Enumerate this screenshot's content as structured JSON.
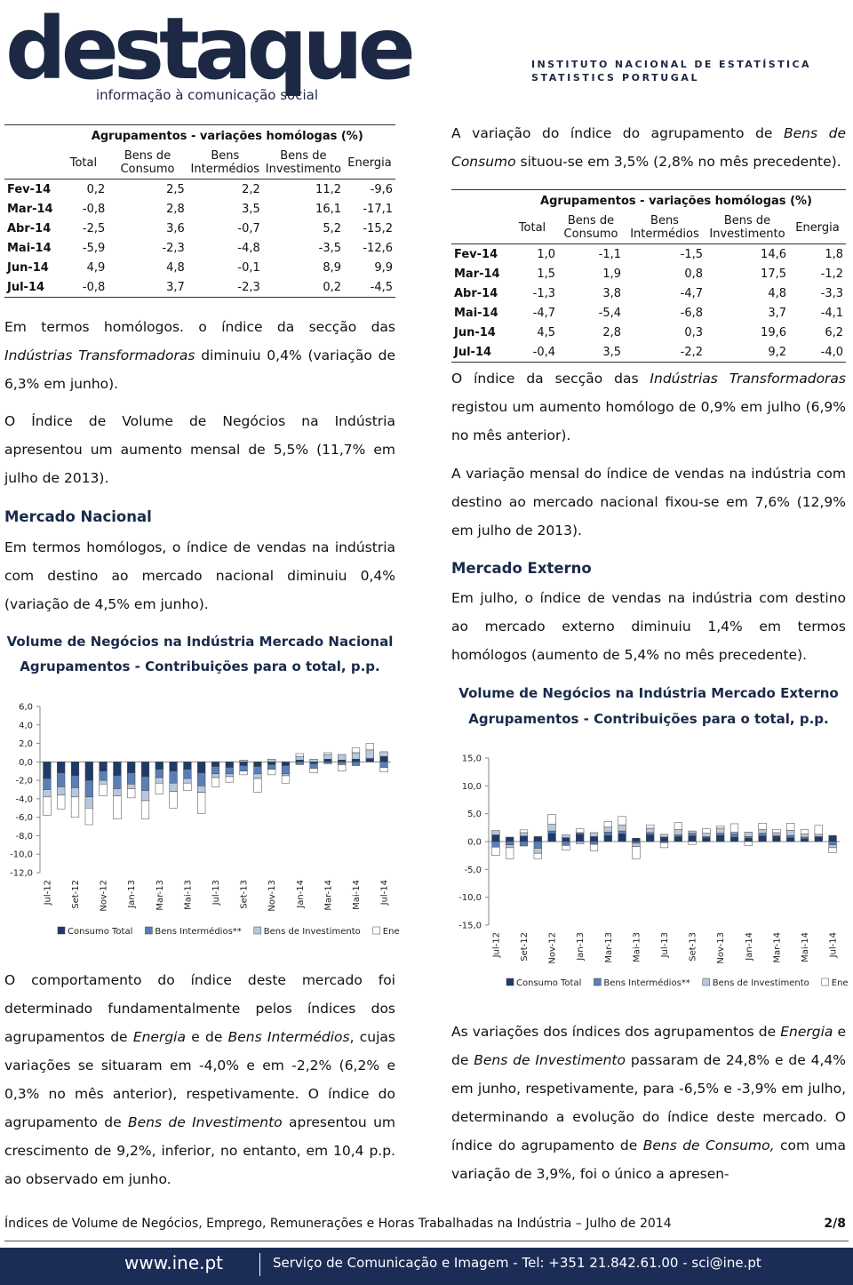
{
  "header": {
    "logo": "destaque",
    "tagline": "informação à comunicação social",
    "institute": "INSTITUTO NACIONAL DE ESTATÍSTICA",
    "institute_en": "STATISTICS PORTUGAL"
  },
  "tables": [
    {
      "title": "Agrupamentos - variações homólogas (%)",
      "columns": [
        "Total",
        "Bens de Consumo",
        "Bens Intermédios",
        "Bens de Investimento",
        "Energia"
      ],
      "rows": [
        [
          "Fev-14",
          "0,2",
          "2,5",
          "2,2",
          "11,2",
          "-9,6"
        ],
        [
          "Mar-14",
          "-0,8",
          "2,8",
          "3,5",
          "16,1",
          "-17,1"
        ],
        [
          "Abr-14",
          "-2,5",
          "3,6",
          "-0,7",
          "5,2",
          "-15,2"
        ],
        [
          "Mai-14",
          "-5,9",
          "-2,3",
          "-4,8",
          "-3,5",
          "-12,6"
        ],
        [
          "Jun-14",
          "4,9",
          "4,8",
          "-0,1",
          "8,9",
          "9,9"
        ],
        [
          "Jul-14",
          "-0,8",
          "3,7",
          "-2,3",
          "0,2",
          "-4,5"
        ]
      ]
    },
    {
      "title": "Agrupamentos - variações homólogas (%)",
      "columns": [
        "Total",
        "Bens de Consumo",
        "Bens Intermédios",
        "Bens de Investimento",
        "Energia"
      ],
      "rows": [
        [
          "Fev-14",
          "1,0",
          "-1,1",
          "-1,5",
          "14,6",
          "1,8"
        ],
        [
          "Mar-14",
          "1,5",
          "1,9",
          "0,8",
          "17,5",
          "-1,2"
        ],
        [
          "Abr-14",
          "-1,3",
          "3,8",
          "-4,7",
          "4,8",
          "-3,3"
        ],
        [
          "Mai-14",
          "-4,7",
          "-5,4",
          "-6,8",
          "3,7",
          "-4,1"
        ],
        [
          "Jun-14",
          "4,5",
          "2,8",
          "0,3",
          "19,6",
          "6,2"
        ],
        [
          "Jul-14",
          "-0,4",
          "3,5",
          "-2,2",
          "9,2",
          "-4,0"
        ]
      ]
    }
  ],
  "headings": [
    "Mercado Nacional",
    "Mercado Externo"
  ],
  "paragraphs": [
    [
      "Em termos homólogos. o índice da secção das ",
      "Indústrias Transformadoras",
      " diminuiu 0,4% (variação de 6,3% em junho)."
    ],
    [
      "O Índice de Volume de Negócios na Indústria apresentou um aumento mensal de 5,5% (11,7% em julho de 2013)."
    ],
    [
      "Em termos homólogos, o índice de vendas na indústria com destino ao mercado nacional diminuiu 0,4% (variação de 4,5% em junho)."
    ],
    [
      "O comportamento do índice deste mercado foi determinado fundamentalmente pelos índices dos agrupamentos de ",
      "Energia",
      " e de ",
      "Bens Intermédios",
      ", cujas variações se situaram em -4,0% e em -2,2% (6,2% e 0,3% no mês anterior), respetivamente. O índice do agrupamento de ",
      "Bens de Investimento",
      " apresentou um crescimento de 9,2%, inferior, no entanto, em 10,4 p.p. ao observado em junho."
    ],
    [
      "A variação do índice do agrupamento de ",
      "Bens de Consumo",
      " situou-se em 3,5% (2,8% no mês precedente)."
    ],
    [
      "O índice da secção das ",
      "Indústrias Transformadoras",
      " registou um aumento homólogo de 0,9% em julho (6,9% no mês anterior)."
    ],
    [
      "A variação mensal do índice de vendas na indústria com destino ao mercado nacional fixou-se em 7,6% (12,9% em julho de 2013)."
    ],
    [
      "Em julho, o índice de vendas na indústria com destino ao mercado externo diminuiu 1,4% em termos homólogos (aumento de 5,4% no mês precedente)."
    ],
    [
      "As variações dos índices dos agrupamentos de ",
      "Energia",
      " e de ",
      "Bens de Investimento",
      " passaram de 24,8% e de 4,4% em junho, respetivamente, para -6,5% e -3,9% em julho, determinando a evolução do índice deste mercado. O índice do agrupamento de ",
      "Bens de Consumo,",
      " com uma variação de 3,9%, foi o único a apresen-"
    ]
  ],
  "chart_data": [
    {
      "type": "bar",
      "stacked": true,
      "title": "Volume de Negócios na Indústria Mercado Nacional",
      "subtitle": "Agrupamentos - Contribuições para o total, p.p.",
      "categories": [
        "Jul-12",
        null,
        "Set-12",
        null,
        "Nov-12",
        null,
        "Jan-13",
        null,
        "Mar-13",
        null,
        "Mai-13",
        null,
        "Jul-13",
        null,
        "Set-13",
        null,
        "Nov-13",
        null,
        "Jan-14",
        null,
        "Mar-14",
        null,
        "Mai-14",
        null,
        "Jul-14"
      ],
      "ylim": [
        -12,
        6
      ],
      "yticks": [
        {
          "value": -12,
          "label": "-12,0"
        },
        {
          "value": -10,
          "label": "-10,0"
        },
        {
          "value": -8,
          "label": "-8,0"
        },
        {
          "value": -6,
          "label": "-6,0"
        },
        {
          "value": -4,
          "label": "-4,0"
        },
        {
          "value": -2,
          "label": "-2,0"
        },
        {
          "value": 0,
          "label": "0,0"
        },
        {
          "value": 2,
          "label": "2,0"
        },
        {
          "value": 4,
          "label": "4,0"
        },
        {
          "value": 6,
          "label": "6,0"
        }
      ],
      "series": [
        {
          "name": "Consumo Total",
          "color": "#1f3a68",
          "values": [
            -1.8,
            -1.2,
            -1.5,
            -2.0,
            -1.0,
            -1.5,
            -1.2,
            -1.6,
            -0.8,
            -1.0,
            -0.8,
            -1.2,
            -0.5,
            -0.6,
            -0.4,
            -0.5,
            -0.3,
            -0.4,
            0.2,
            -0.2,
            0.3,
            0.2,
            0.3,
            0.3,
            0.6
          ]
        },
        {
          "name": "Bens Intermédios**",
          "color": "#5b7fb5",
          "values": [
            -1.2,
            -1.5,
            -1.3,
            -1.8,
            -1.0,
            -1.4,
            -1.2,
            -1.5,
            -0.9,
            -1.3,
            -1.0,
            -1.4,
            -0.8,
            -0.7,
            -0.6,
            -0.8,
            -0.5,
            -0.9,
            -0.3,
            -0.5,
            -0.2,
            -0.3,
            -0.4,
            0.1,
            -0.6
          ]
        },
        {
          "name": "Bens de Investimento",
          "color": "#b8c8dc",
          "values": [
            -0.8,
            -0.9,
            -1.0,
            -1.2,
            -0.4,
            -0.8,
            -0.5,
            -1.1,
            -0.6,
            -0.9,
            -0.5,
            -0.7,
            -0.4,
            -0.3,
            0.2,
            -0.5,
            0.3,
            -0.2,
            0.4,
            0.3,
            0.5,
            0.6,
            0.7,
            0.9,
            0.5
          ]
        },
        {
          "name": "Energia",
          "color": "#ffffff",
          "values": [
            -2.0,
            -1.5,
            -2.2,
            -1.8,
            -1.3,
            -2.5,
            -1.0,
            -2.0,
            -1.2,
            -1.8,
            -0.8,
            -2.3,
            -1.0,
            -0.6,
            -0.4,
            -1.5,
            -0.6,
            -0.8,
            0.3,
            -0.5,
            0.2,
            -0.7,
            0.5,
            0.7,
            -0.5
          ]
        }
      ]
    },
    {
      "type": "bar",
      "stacked": true,
      "title": "Volume de Negócios na Indústria Mercado Externo",
      "subtitle": "Agrupamentos - Contribuições para o total, p.p.",
      "categories": [
        "Jul-12",
        null,
        "Set-12",
        null,
        "Nov-12",
        null,
        "Jan-13",
        null,
        "Mar-13",
        null,
        "Mai-13",
        null,
        "Jul-13",
        null,
        "Set-13",
        null,
        "Nov-13",
        null,
        "Jan-14",
        null,
        "Mar-14",
        null,
        "Mai-14",
        null,
        "Jul-14"
      ],
      "ylim": [
        -15,
        15
      ],
      "yticks": [
        {
          "value": -15,
          "label": "-15,0"
        },
        {
          "value": -10,
          "label": "-10,0"
        },
        {
          "value": -5,
          "label": "-5,0"
        },
        {
          "value": 0,
          "label": "0,0"
        },
        {
          "value": 5,
          "label": "5,0"
        },
        {
          "value": 10,
          "label": "10,0"
        },
        {
          "value": 15,
          "label": "15,0"
        }
      ],
      "series": [
        {
          "name": "Consumo Total",
          "color": "#1f3a68",
          "values": [
            1.2,
            0.8,
            1.0,
            0.9,
            1.5,
            0.7,
            1.3,
            0.9,
            1.1,
            1.4,
            0.6,
            1.2,
            0.8,
            0.9,
            1.0,
            0.7,
            1.1,
            0.8,
            0.6,
            1.0,
            0.9,
            0.7,
            0.5,
            0.8,
            1.1
          ]
        },
        {
          "name": "Bens Intermédios**",
          "color": "#5b7fb5",
          "values": [
            -1.0,
            -0.6,
            -0.8,
            -1.2,
            0.4,
            -0.7,
            0.3,
            -0.5,
            0.6,
            0.5,
            -0.3,
            0.4,
            -0.2,
            0.3,
            0.5,
            0.2,
            0.4,
            0.6,
            0.3,
            0.5,
            0.2,
            0.4,
            0.3,
            0.1,
            -0.6
          ]
        },
        {
          "name": "Bens de Investimento",
          "color": "#b8c8dc",
          "values": [
            0.8,
            -0.5,
            0.6,
            -0.9,
            1.2,
            0.5,
            -0.4,
            0.7,
            0.9,
            1.1,
            -0.6,
            0.8,
            0.5,
            1.0,
            0.4,
            0.6,
            0.9,
            0.3,
            0.8,
            0.7,
            0.5,
            0.9,
            0.6,
            0.4,
            -0.5
          ]
        },
        {
          "name": "Energia",
          "color": "#ffffff",
          "values": [
            -1.5,
            -2.0,
            0.5,
            -1.0,
            1.8,
            -0.8,
            0.7,
            -1.2,
            1.0,
            1.5,
            -2.2,
            0.6,
            -0.9,
            1.2,
            -0.5,
            0.8,
            0.4,
            1.5,
            -0.7,
            1.1,
            0.6,
            1.3,
            0.8,
            1.6,
            -0.9
          ]
        }
      ]
    }
  ],
  "footer": {
    "text": "Índices de Volume de Negócios, Emprego, Remunerações e Horas Trabalhadas na Indústria – Julho de 2014",
    "page": "2/8",
    "site": "www.ine.pt",
    "contact": "Serviço de Comunicação e Imagem - Tel: +351 21.842.61.00 - sci@ine.pt"
  }
}
